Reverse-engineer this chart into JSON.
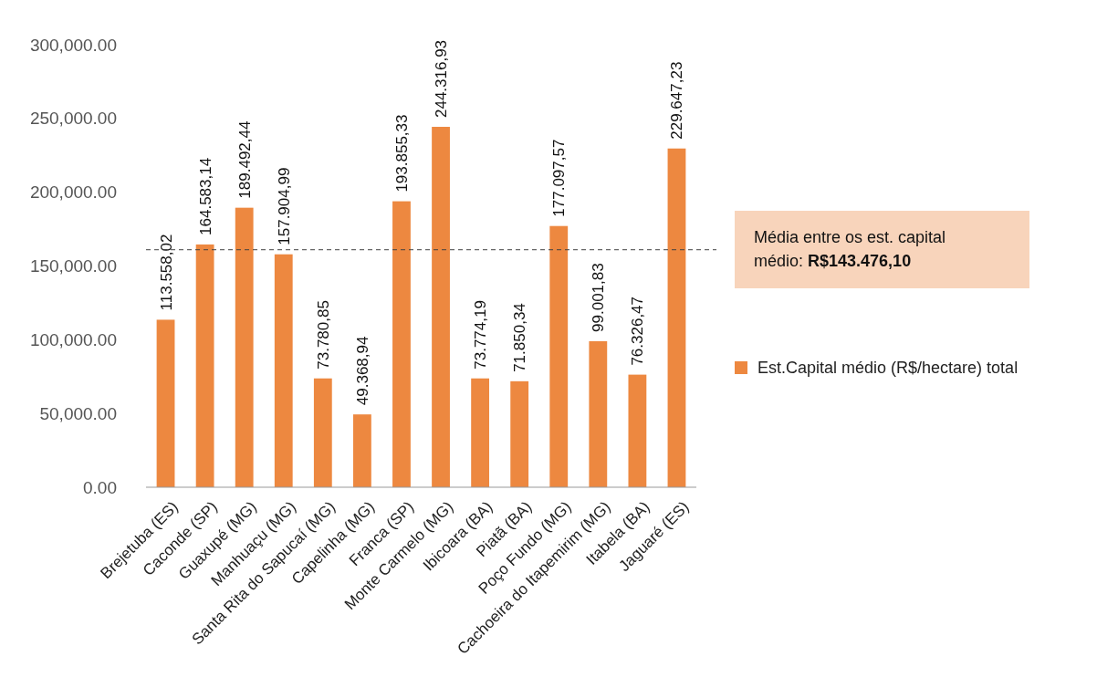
{
  "chart_data": {
    "type": "bar",
    "categories": [
      "Brejetuba (ES)",
      "Caconde (SP)",
      "Guaxupé (MG)",
      "Manhuaçu (MG)",
      "Santa Rita do Sapucaí (MG)",
      "Capelinha (MG)",
      "Franca (SP)",
      "Monte Carmelo (MG)",
      "Ibicoara (BA)",
      "Piatã (BA)",
      "Poço Fundo (MG)",
      "Cachoeira do Itapemirim (MG)",
      "Itabela (BA)",
      "Jaguaré (ES)"
    ],
    "series": [
      {
        "name": "Est.Capital médio (R$/hectare) total",
        "color": "#ed8840",
        "values": [
          113558.02,
          164583.14,
          189492.44,
          157904.99,
          73780.85,
          49368.94,
          193855.33,
          244316.93,
          73774.19,
          71850.34,
          177097.57,
          99001.83,
          76326.47,
          229647.23
        ],
        "value_labels": [
          "113.558,02",
          "164.583,14",
          "189.492,44",
          "157.904,99",
          "73.780,85",
          "49.368,94",
          "193.855,33",
          "244.316,93",
          "73.774,19",
          "71.850,34",
          "177.097,57",
          "99.001,83",
          "76.326,47",
          "229.647,23"
        ]
      }
    ],
    "ylim": [
      0,
      300000
    ],
    "yticks": [
      {
        "value": 0,
        "label": "0.00"
      },
      {
        "value": 50000,
        "label": "50,000.00"
      },
      {
        "value": 100000,
        "label": "100,000.00"
      },
      {
        "value": 150000,
        "label": "150,000.00"
      },
      {
        "value": 200000,
        "label": "200,000.00"
      },
      {
        "value": 250000,
        "label": "250,000.00"
      },
      {
        "value": 300000,
        "label": "300,000.00"
      }
    ],
    "ref_lines": [
      {
        "axis": "y",
        "value": 161000,
        "color": "#404040",
        "line_style": "dashed"
      }
    ],
    "annotations": [
      "Média entre os est. capital médio: R$143.476,10"
    ],
    "grid": false,
    "legend": "right"
  }
}
